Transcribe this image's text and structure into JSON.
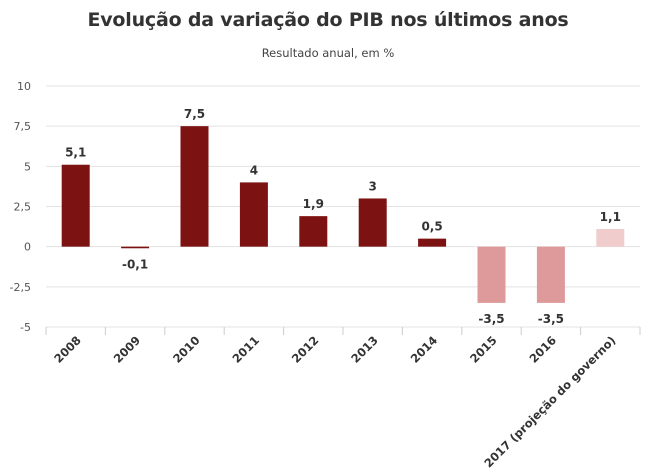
{
  "title": "Evolução da variação do PIB nos últimos anos",
  "subtitle": "Resultado anual, em %",
  "chart_data": {
    "type": "bar",
    "title": "Evolução da variação do PIB nos últimos anos",
    "subtitle": "Resultado anual, em %",
    "xlabel": "",
    "ylabel": "",
    "ylim": [
      -5,
      10
    ],
    "yticks": [
      10,
      7.5,
      5,
      2.5,
      0,
      -2.5,
      -5
    ],
    "ytick_labels": [
      "10",
      "7,5",
      "5",
      "2,5",
      "0",
      "-2,5",
      "-5"
    ],
    "grid": true,
    "categories": [
      "2008",
      "2009",
      "2010",
      "2011",
      "2012",
      "2013",
      "2014",
      "2015",
      "2016",
      "2017 (projeção do governo)"
    ],
    "values": [
      5.1,
      -0.1,
      7.5,
      4,
      1.9,
      3,
      0.5,
      -3.5,
      -3.5,
      1.1
    ],
    "data_labels": [
      "5,1",
      "-0,1",
      "7,5",
      "4",
      "1,9",
      "3",
      "0,5",
      "-3,5",
      "-3,5",
      "1,1"
    ],
    "colors": {
      "positive": "#7d1212",
      "negative": "#de9a9a",
      "projection": "#f1cccc"
    }
  }
}
